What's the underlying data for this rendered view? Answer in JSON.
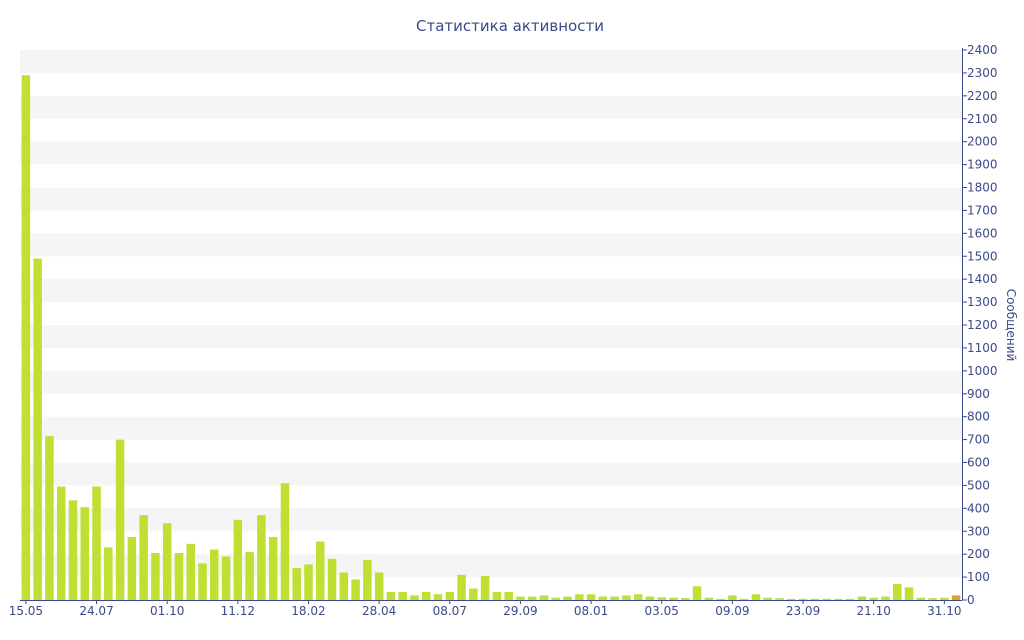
{
  "chart_data": {
    "type": "bar",
    "title": "Статистика активности",
    "xlabel": "",
    "ylabel": "Сообщений",
    "ylim": [
      0,
      2400
    ],
    "y_ticks": [
      0,
      100,
      200,
      300,
      400,
      500,
      600,
      700,
      800,
      900,
      1000,
      1100,
      1200,
      1300,
      1400,
      1500,
      1600,
      1700,
      1800,
      1900,
      2000,
      2100,
      2200,
      2300,
      2400
    ],
    "y_axis_side": "right",
    "x_tick_labels": [
      {
        "label": "15.05",
        "index": 0
      },
      {
        "label": "24.07",
        "index": 6
      },
      {
        "label": "01.10",
        "index": 12
      },
      {
        "label": "11.12",
        "index": 18
      },
      {
        "label": "18.02",
        "index": 24
      },
      {
        "label": "28.04",
        "index": 30
      },
      {
        "label": "08.07",
        "index": 36
      },
      {
        "label": "29.09",
        "index": 42
      },
      {
        "label": "08.01",
        "index": 48
      },
      {
        "label": "03.05",
        "index": 54
      },
      {
        "label": "09.09",
        "index": 60
      },
      {
        "label": "23.09",
        "index": 66
      },
      {
        "label": "21.10",
        "index": 72
      },
      {
        "label": "31.10",
        "index": 78
      }
    ],
    "values": [
      2290,
      1490,
      715,
      495,
      435,
      405,
      495,
      230,
      700,
      275,
      370,
      205,
      335,
      205,
      245,
      160,
      220,
      190,
      350,
      210,
      370,
      275,
      510,
      140,
      155,
      255,
      180,
      120,
      90,
      175,
      120,
      35,
      35,
      20,
      35,
      25,
      35,
      110,
      50,
      105,
      35,
      35,
      15,
      15,
      20,
      10,
      15,
      25,
      25,
      15,
      15,
      20,
      25,
      15,
      12,
      10,
      8,
      60,
      10,
      5,
      20,
      5,
      25,
      10,
      8,
      5,
      5,
      5,
      5,
      5,
      5,
      15,
      10,
      15,
      70,
      55,
      10,
      8,
      10,
      20
    ],
    "highlight_index": 79,
    "grid": "horizontal bands",
    "colors": {
      "bar": "#bfdf32",
      "bar_highlight": "#d9a22b",
      "band": "#f5f5f5",
      "axis": "#3b4a8a"
    }
  }
}
